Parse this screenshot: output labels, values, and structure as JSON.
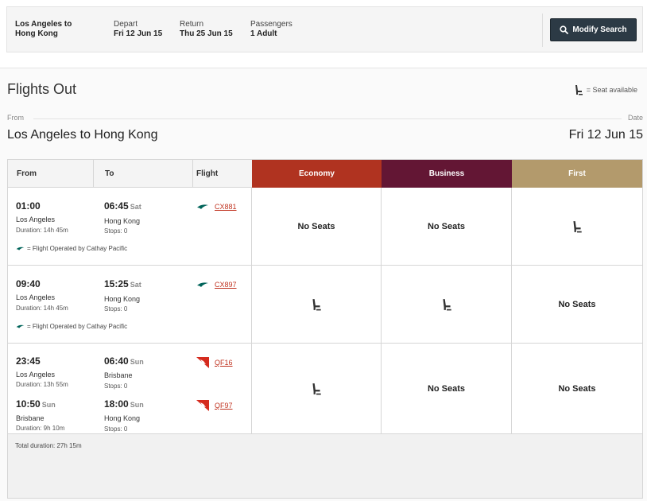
{
  "summary": {
    "route_line1": "Los Angeles to",
    "route_line2": "Hong Kong",
    "depart_label": "Depart",
    "depart_value": "Fri 12 Jun 15",
    "return_label": "Return",
    "return_value": "Thu 25 Jun 15",
    "passengers_label": "Passengers",
    "passengers_value": "1 Adult",
    "modify_label": "Modify Search"
  },
  "section": {
    "title": "Flights Out",
    "legend_text": "= Seat available",
    "from_label": "From",
    "date_label": "Date",
    "route": "Los Angeles to Hong Kong",
    "date": "Fri 12 Jun 15"
  },
  "table": {
    "headers": {
      "from": "From",
      "to": "To",
      "flight": "Flight",
      "economy": "Economy",
      "business": "Business",
      "first": "First"
    },
    "no_seats": "No Seats",
    "rows": [
      {
        "dep_time": "01:00",
        "dep_city": "Los Angeles",
        "duration": "Duration: 14h 45m",
        "arr_time": "06:45",
        "arr_day": "Sat",
        "arr_city": "Hong Kong",
        "stops": "Stops: 0",
        "flight": "CX881",
        "note": "= Flight Operated by Cathay Pacific",
        "economy": "No Seats",
        "business": "No Seats",
        "first": "seat"
      },
      {
        "dep_time": "09:40",
        "dep_city": "Los Angeles",
        "duration": "Duration: 14h 45m",
        "arr_time": "15:25",
        "arr_day": "Sat",
        "arr_city": "Hong Kong",
        "stops": "Stops: 0",
        "flight": "CX897",
        "note": "= Flight Operated by Cathay Pacific",
        "economy": "seat",
        "business": "seat",
        "first": "No Seats"
      },
      {
        "seg1": {
          "dep_time": "23:45",
          "dep_city": "Los Angeles",
          "duration": "Duration: 13h 55m",
          "arr_time": "06:40",
          "arr_day": "Sun",
          "arr_city": "Brisbane",
          "stops": "Stops: 0",
          "flight": "QF16"
        },
        "seg2": {
          "dep_time": "10:50",
          "dep_day": "Sun",
          "dep_city": "Brisbane",
          "duration": "Duration: 9h 10m",
          "arr_time": "18:00",
          "arr_day": "Sun",
          "arr_city": "Hong Kong",
          "stops": "Stops: 0",
          "flight": "QF97"
        },
        "total": "Total duration: 27h 15m",
        "economy": "seat",
        "business": "No Seats",
        "first": "No Seats"
      }
    ]
  },
  "icons": {
    "search": "search-icon",
    "seat": "seat-icon",
    "cathay": "cathay-pacific-logo-icon",
    "qantas": "qantas-logo-icon"
  },
  "colors": {
    "economy": "#b03320",
    "business": "#631634",
    "first": "#b39a6c",
    "button": "#2c3a45",
    "flight_link": "#c0321f"
  }
}
